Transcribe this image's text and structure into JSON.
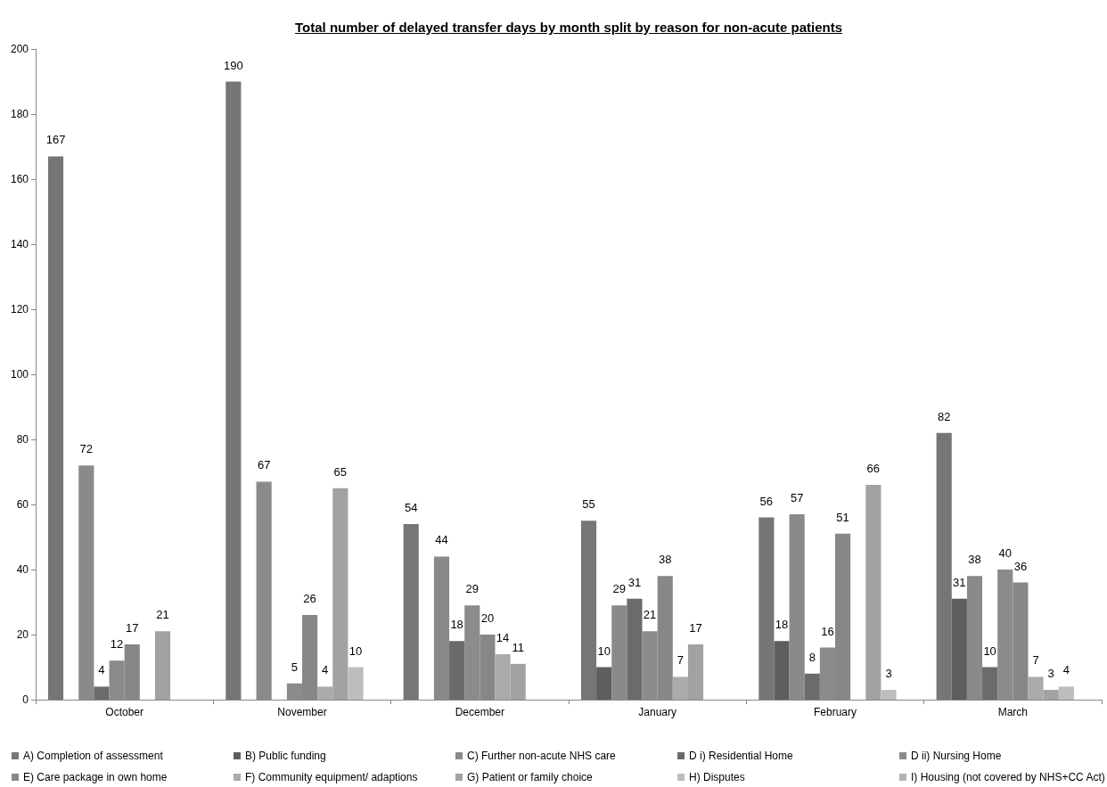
{
  "chart_data": {
    "type": "bar",
    "title": "Total number of delayed transfer days by month split by reason for non-acute patients",
    "categories": [
      "October",
      "November",
      "December",
      "January",
      "February",
      "March"
    ],
    "series": [
      {
        "name": "A) Completion of assessment",
        "color": "#767676",
        "values": [
          167,
          190,
          54,
          55,
          56,
          82
        ],
        "value_labels": [
          "167",
          "190",
          "54",
          "55",
          "56",
          "82"
        ]
      },
      {
        "name": "B) Public funding",
        "color": "#5e5e5e",
        "values": [
          0,
          0,
          0,
          10,
          18,
          31
        ],
        "value_labels": [
          null,
          null,
          null,
          "10",
          "18",
          "31"
        ]
      },
      {
        "name": "C) Further non-acute NHS care",
        "color": "#8a8a8a",
        "values": [
          72,
          67,
          44,
          29,
          57,
          38
        ],
        "value_labels": [
          "72",
          "67",
          "44",
          "29",
          "57",
          "38"
        ]
      },
      {
        "name": "D i) Residential Home",
        "color": "#6b6b6b",
        "values": [
          4,
          0,
          18,
          31,
          8,
          10
        ],
        "value_labels": [
          "4",
          null,
          "18",
          "31",
          "8",
          "10"
        ]
      },
      {
        "name": "D ii) Nursing Home",
        "color": "#8b8b8b",
        "values": [
          12,
          5,
          29,
          21,
          16,
          40
        ],
        "value_labels": [
          "12",
          "5",
          "29",
          "21",
          "16",
          "40"
        ]
      },
      {
        "name": "E) Care package in own home",
        "color": "#878787",
        "values": [
          17,
          26,
          20,
          38,
          51,
          36
        ],
        "value_labels": [
          "17",
          "26",
          "20",
          "38",
          "51",
          "36"
        ]
      },
      {
        "name": "F) Community equipment/ adaptions",
        "color": "#ababab",
        "values": [
          0,
          4,
          14,
          7,
          0,
          7
        ],
        "value_labels": [
          null,
          "4",
          "14",
          "7",
          null,
          "7"
        ]
      },
      {
        "name": "G) Patient or family choice",
        "color": "#a2a2a2",
        "values": [
          21,
          65,
          11,
          17,
          66,
          3
        ],
        "value_labels": [
          "21",
          "65",
          "11",
          "17",
          "66",
          "3"
        ]
      },
      {
        "name": "H) Disputes",
        "color": "#bdbdbd",
        "values": [
          0,
          10,
          0,
          0,
          3,
          4
        ],
        "value_labels": [
          null,
          "10",
          null,
          null,
          "3",
          "4"
        ]
      },
      {
        "name": "I) Housing (not covered by NHS+CC Act)",
        "color": "#b3b3b3",
        "values": [
          0,
          0,
          0,
          0,
          0,
          0
        ],
        "value_labels": [
          null,
          null,
          null,
          null,
          null,
          null
        ]
      }
    ],
    "ylim": [
      0,
      200
    ],
    "yticks": [
      0,
      20,
      40,
      60,
      80,
      100,
      120,
      140,
      160,
      180,
      200
    ],
    "grid": false,
    "legend": "bottom"
  }
}
